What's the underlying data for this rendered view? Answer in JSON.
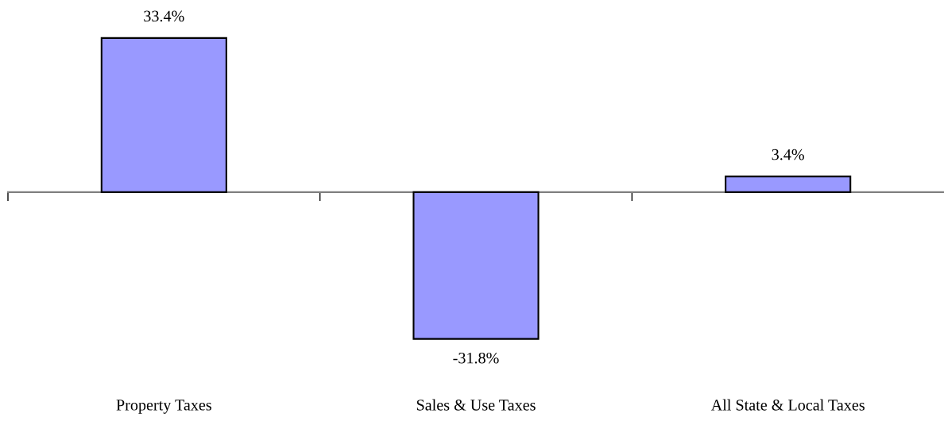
{
  "chart_data": {
    "type": "bar",
    "categories": [
      "Property Taxes",
      "Sales & Use Taxes",
      "All State & Local Taxes"
    ],
    "values": [
      33.4,
      -31.8,
      3.4
    ],
    "value_labels": [
      "33.4%",
      "-31.8%",
      "3.4%"
    ],
    "color": "#9999ff",
    "tick_labels": "x",
    "grid": false
  }
}
